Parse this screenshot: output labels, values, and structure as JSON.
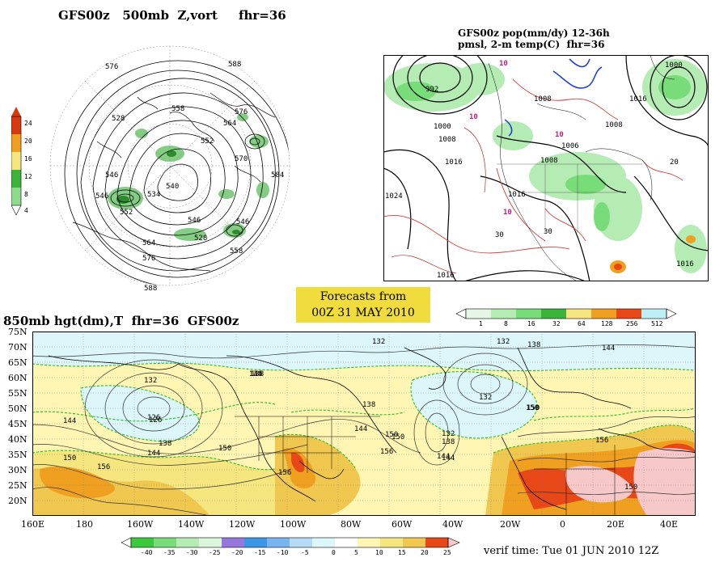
{
  "polar_panel": {
    "title": "GFS00z   500mb  Z,vort     fhr=36",
    "colorbar": {
      "labels": [
        "24",
        "20",
        "16",
        "12",
        "8",
        "4"
      ],
      "colors": [
        "#d83a10",
        "#f0a020",
        "#f6e680",
        "#3cb43c",
        "#8cdc8c",
        "#ffffff"
      ]
    },
    "contour_labels": [
      "576",
      "588",
      "558",
      "528",
      "540",
      "564",
      "570",
      "546",
      "584",
      "552",
      "564",
      "576",
      "588",
      "546",
      "534",
      "546",
      "558",
      "576",
      "552",
      "546",
      "528",
      "588"
    ]
  },
  "pop_panel": {
    "title_line1": "GFS00z pop(mm/dy) 12-36h",
    "title_line2": "pmsl, 2-m temp(C)  fhr=36",
    "pressure_labels": [
      "992",
      "1000",
      "1008",
      "1016",
      "1024",
      "1016",
      "1008",
      "1000",
      "1006",
      "1008",
      "1016",
      "1016",
      "1008",
      "1016"
    ],
    "temp_labels": [
      "10",
      "10",
      "10",
      "10",
      "30",
      "20",
      "30"
    ],
    "colorbar": {
      "labels": [
        "1",
        "8",
        "16",
        "32",
        "64",
        "128",
        "256",
        "512"
      ],
      "colors": [
        "#e6f6e6",
        "#b4ecb4",
        "#78dc78",
        "#3cb43c",
        "#f6e680",
        "#f0a020",
        "#e84818",
        "#bfeff6"
      ]
    }
  },
  "forecast_box": {
    "line1": "Forecasts from",
    "line2": "00Z 31 MAY 2010"
  },
  "main_map": {
    "title": "850mb hgt(dm),T  fhr=36  GFS00z",
    "lat_labels": [
      "75N",
      "70N",
      "65N",
      "60N",
      "55N",
      "50N",
      "45N",
      "40N",
      "35N",
      "30N",
      "25N",
      "20N"
    ],
    "lon_labels": [
      "160E",
      "180",
      "160W",
      "140W",
      "120W",
      "100W",
      "80W",
      "60W",
      "40W",
      "20W",
      "0",
      "20E",
      "40E"
    ],
    "contour_labels": [
      "132",
      "126",
      "138",
      "144",
      "150",
      "156",
      "144",
      "138",
      "144",
      "132",
      "150",
      "156",
      "144",
      "138",
      "150",
      "156",
      "132",
      "138",
      "144",
      "150",
      "144",
      "150",
      "156",
      "126",
      "150",
      "132",
      "138",
      "144",
      "132",
      "138",
      "150"
    ],
    "colorbar": {
      "labels": [
        "-40",
        "-35",
        "-30",
        "-25",
        "-20",
        "-15",
        "-10",
        "-5",
        "0",
        "5",
        "10",
        "15",
        "20",
        "25"
      ],
      "colors": [
        "#3cc83c",
        "#78dc78",
        "#b4ecb4",
        "#dcf6dc",
        "#9678dc",
        "#3c96e6",
        "#78b4f0",
        "#b4dcf6",
        "#dcf6fa",
        "#ffffff",
        "#fff6b4",
        "#f6e680",
        "#f0c850",
        "#f0a020",
        "#e84818",
        "#f6c8c8"
      ]
    },
    "verif_time": "verif time: Tue 01 JUN 2010 12Z"
  }
}
